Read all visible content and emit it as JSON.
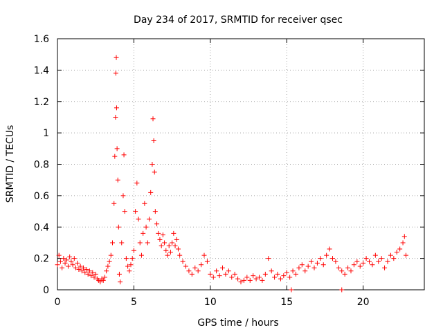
{
  "chart_data": {
    "type": "scatter",
    "title": "Day 234 of 2017, SRMTID for receiver qsec",
    "xlabel": "GPS time / hours",
    "ylabel": "SRMTID / TECUs",
    "xlim": [
      0,
      24
    ],
    "ylim": [
      0,
      1.6
    ],
    "xticks": [
      0,
      5,
      10,
      15,
      20
    ],
    "xtick_labels": [
      "0",
      "5",
      "10",
      "15",
      "20"
    ],
    "yticks": [
      0,
      0.2,
      0.4,
      0.6,
      0.8,
      1,
      1.2,
      1.4,
      1.6
    ],
    "ytick_labels": [
      "0",
      "0.2",
      "0.4",
      "0.6",
      "0.8",
      "1",
      "1.2",
      "1.4",
      "1.6"
    ],
    "grid": true,
    "marker": "plus",
    "series": [
      {
        "name": "SRMTID",
        "color": "#ff0000",
        "points": [
          [
            0.0,
            0.16
          ],
          [
            0.1,
            0.22
          ],
          [
            0.2,
            0.18
          ],
          [
            0.3,
            0.14
          ],
          [
            0.4,
            0.2
          ],
          [
            0.5,
            0.17
          ],
          [
            0.6,
            0.19
          ],
          [
            0.7,
            0.15
          ],
          [
            0.8,
            0.21
          ],
          [
            0.9,
            0.18
          ],
          [
            1.0,
            0.16
          ],
          [
            1.1,
            0.2
          ],
          [
            1.2,
            0.14
          ],
          [
            1.3,
            0.17
          ],
          [
            1.4,
            0.13
          ],
          [
            1.5,
            0.15
          ],
          [
            1.6,
            0.12
          ],
          [
            1.7,
            0.14
          ],
          [
            1.8,
            0.11
          ],
          [
            1.9,
            0.13
          ],
          [
            2.0,
            0.1
          ],
          [
            2.1,
            0.12
          ],
          [
            2.2,
            0.09
          ],
          [
            2.3,
            0.11
          ],
          [
            2.4,
            0.08
          ],
          [
            2.5,
            0.1
          ],
          [
            2.6,
            0.07
          ],
          [
            2.7,
            0.06
          ],
          [
            2.8,
            0.05
          ],
          [
            2.9,
            0.07
          ],
          [
            3.0,
            0.06
          ],
          [
            3.1,
            0.08
          ],
          [
            3.2,
            0.12
          ],
          [
            3.3,
            0.15
          ],
          [
            3.4,
            0.18
          ],
          [
            3.5,
            0.22
          ],
          [
            3.6,
            0.3
          ],
          [
            3.7,
            0.55
          ],
          [
            3.75,
            0.85
          ],
          [
            3.8,
            1.1
          ],
          [
            3.82,
            1.38
          ],
          [
            3.85,
            1.48
          ],
          [
            3.87,
            1.16
          ],
          [
            3.9,
            0.9
          ],
          [
            3.95,
            0.7
          ],
          [
            4.0,
            0.4
          ],
          [
            4.05,
            0.1
          ],
          [
            4.1,
            0.05
          ],
          [
            4.2,
            0.3
          ],
          [
            4.3,
            0.6
          ],
          [
            4.35,
            0.86
          ],
          [
            4.4,
            0.5
          ],
          [
            4.5,
            0.2
          ],
          [
            4.6,
            0.15
          ],
          [
            4.7,
            0.12
          ],
          [
            4.8,
            0.16
          ],
          [
            4.9,
            0.2
          ],
          [
            5.0,
            0.25
          ],
          [
            5.1,
            0.5
          ],
          [
            5.2,
            0.68
          ],
          [
            5.3,
            0.45
          ],
          [
            5.4,
            0.3
          ],
          [
            5.5,
            0.22
          ],
          [
            5.6,
            0.36
          ],
          [
            5.7,
            0.55
          ],
          [
            5.8,
            0.4
          ],
          [
            5.9,
            0.3
          ],
          [
            6.0,
            0.45
          ],
          [
            6.1,
            0.62
          ],
          [
            6.2,
            0.8
          ],
          [
            6.25,
            1.09
          ],
          [
            6.3,
            0.95
          ],
          [
            6.35,
            0.75
          ],
          [
            6.4,
            0.5
          ],
          [
            6.5,
            0.42
          ],
          [
            6.6,
            0.36
          ],
          [
            6.7,
            0.32
          ],
          [
            6.8,
            0.28
          ],
          [
            6.9,
            0.35
          ],
          [
            7.0,
            0.3
          ],
          [
            7.1,
            0.25
          ],
          [
            7.2,
            0.22
          ],
          [
            7.3,
            0.28
          ],
          [
            7.4,
            0.24
          ],
          [
            7.5,
            0.3
          ],
          [
            7.6,
            0.36
          ],
          [
            7.7,
            0.28
          ],
          [
            7.8,
            0.32
          ],
          [
            7.9,
            0.26
          ],
          [
            8.0,
            0.22
          ],
          [
            8.2,
            0.18
          ],
          [
            8.4,
            0.15
          ],
          [
            8.6,
            0.12
          ],
          [
            8.8,
            0.1
          ],
          [
            9.0,
            0.14
          ],
          [
            9.2,
            0.12
          ],
          [
            9.4,
            0.16
          ],
          [
            9.6,
            0.22
          ],
          [
            9.8,
            0.18
          ],
          [
            10.0,
            0.1
          ],
          [
            10.2,
            0.08
          ],
          [
            10.4,
            0.12
          ],
          [
            10.6,
            0.09
          ],
          [
            10.8,
            0.14
          ],
          [
            11.0,
            0.1
          ],
          [
            11.2,
            0.12
          ],
          [
            11.4,
            0.08
          ],
          [
            11.6,
            0.1
          ],
          [
            11.8,
            0.07
          ],
          [
            12.0,
            0.05
          ],
          [
            12.2,
            0.06
          ],
          [
            12.4,
            0.08
          ],
          [
            12.6,
            0.06
          ],
          [
            12.8,
            0.09
          ],
          [
            13.0,
            0.07
          ],
          [
            13.2,
            0.08
          ],
          [
            13.4,
            0.06
          ],
          [
            13.6,
            0.1
          ],
          [
            13.8,
            0.2
          ],
          [
            14.0,
            0.12
          ],
          [
            14.2,
            0.08
          ],
          [
            14.4,
            0.1
          ],
          [
            14.6,
            0.07
          ],
          [
            14.8,
            0.09
          ],
          [
            15.0,
            0.11
          ],
          [
            15.2,
            0.08
          ],
          [
            15.3,
            0.0
          ],
          [
            15.4,
            0.12
          ],
          [
            15.6,
            0.1
          ],
          [
            15.8,
            0.14
          ],
          [
            16.0,
            0.16
          ],
          [
            16.2,
            0.12
          ],
          [
            16.4,
            0.15
          ],
          [
            16.6,
            0.18
          ],
          [
            16.8,
            0.14
          ],
          [
            17.0,
            0.17
          ],
          [
            17.2,
            0.2
          ],
          [
            17.4,
            0.16
          ],
          [
            17.6,
            0.22
          ],
          [
            17.8,
            0.26
          ],
          [
            18.0,
            0.2
          ],
          [
            18.2,
            0.18
          ],
          [
            18.4,
            0.14
          ],
          [
            18.6,
            0.0
          ],
          [
            18.6,
            0.12
          ],
          [
            18.8,
            0.1
          ],
          [
            19.0,
            0.14
          ],
          [
            19.2,
            0.12
          ],
          [
            19.4,
            0.16
          ],
          [
            19.6,
            0.18
          ],
          [
            19.8,
            0.15
          ],
          [
            20.0,
            0.17
          ],
          [
            20.2,
            0.2
          ],
          [
            20.4,
            0.18
          ],
          [
            20.6,
            0.16
          ],
          [
            20.8,
            0.22
          ],
          [
            21.0,
            0.18
          ],
          [
            21.2,
            0.2
          ],
          [
            21.4,
            0.14
          ],
          [
            21.6,
            0.18
          ],
          [
            21.8,
            0.22
          ],
          [
            22.0,
            0.2
          ],
          [
            22.2,
            0.24
          ],
          [
            22.4,
            0.26
          ],
          [
            22.6,
            0.3
          ],
          [
            22.7,
            0.34
          ],
          [
            22.8,
            0.22
          ]
        ]
      }
    ]
  }
}
